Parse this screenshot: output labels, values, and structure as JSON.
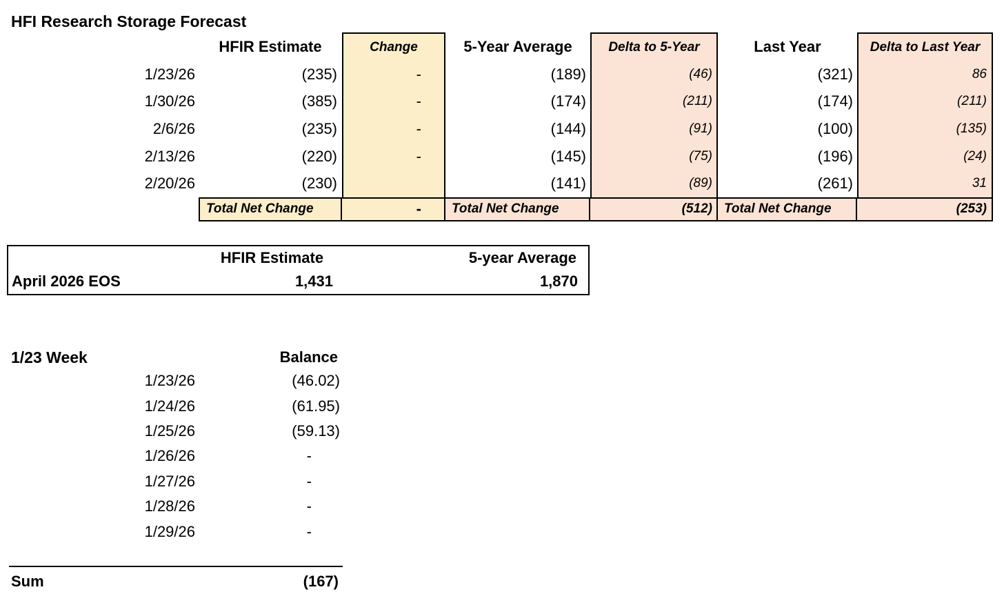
{
  "title": "HFI Research Storage Forecast",
  "colors": {
    "change_column": "#FBEEC9",
    "delta_column": "#FBE3D5",
    "border": "#000000"
  },
  "forecast_table": {
    "headers": {
      "hfir": "HFIR Estimate",
      "change": "Change",
      "five_year": "5-Year Average",
      "delta_five": "Delta to 5-Year",
      "last_year": "Last Year",
      "delta_last": "Delta to Last Year"
    },
    "rows": [
      {
        "date": "1/23/26",
        "hfir": "(235)",
        "change": "-",
        "five_year": "(189)",
        "delta_five": "(46)",
        "last_year": "(321)",
        "delta_last": "86"
      },
      {
        "date": "1/30/26",
        "hfir": "(385)",
        "change": "-",
        "five_year": "(174)",
        "delta_five": "(211)",
        "last_year": "(174)",
        "delta_last": "(211)"
      },
      {
        "date": "2/6/26",
        "hfir": "(235)",
        "change": "-",
        "five_year": "(144)",
        "delta_five": "(91)",
        "last_year": "(100)",
        "delta_last": "(135)"
      },
      {
        "date": "2/13/26",
        "hfir": "(220)",
        "change": "-",
        "five_year": "(145)",
        "delta_five": "(75)",
        "last_year": "(196)",
        "delta_last": "(24)"
      },
      {
        "date": "2/20/26",
        "hfir": "(230)",
        "change": "",
        "five_year": "(141)",
        "delta_five": "(89)",
        "last_year": "(261)",
        "delta_last": "31"
      }
    ],
    "total_row": {
      "label1": "Total Net Change",
      "change_total": "-",
      "label2": "Total Net Change",
      "delta_five_total": "(512)",
      "label3": "Total Net Change",
      "delta_last_total": "(253)"
    }
  },
  "eos_table": {
    "headers": {
      "hfir": "HFIR Estimate",
      "five_year": "5-year Average"
    },
    "row_label": "April 2026 EOS",
    "hfir_value": "1,431",
    "five_year_value": "1,870"
  },
  "week_table": {
    "title": "1/23 Week",
    "balance_header": "Balance",
    "rows": [
      {
        "date": "1/23/26",
        "balance": "(46.02)"
      },
      {
        "date": "1/24/26",
        "balance": "(61.95)"
      },
      {
        "date": "1/25/26",
        "balance": "(59.13)"
      },
      {
        "date": "1/26/26",
        "balance": "-"
      },
      {
        "date": "1/27/26",
        "balance": "-"
      },
      {
        "date": "1/28/26",
        "balance": "-"
      },
      {
        "date": "1/29/26",
        "balance": "-"
      }
    ],
    "sum_label": "Sum",
    "sum_value": "(167)"
  }
}
